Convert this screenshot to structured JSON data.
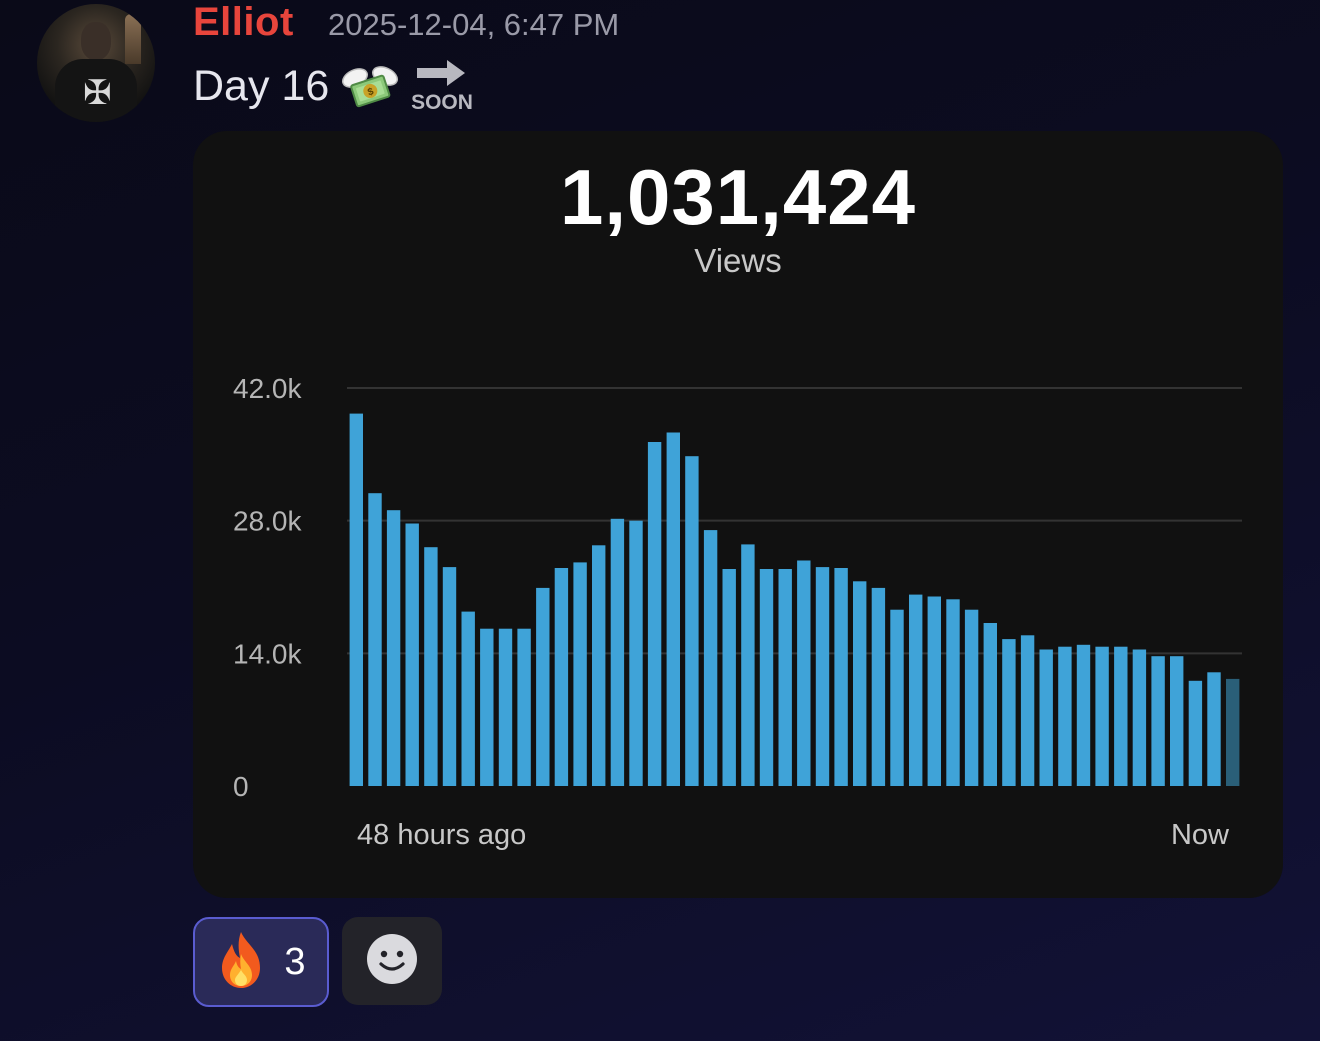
{
  "message": {
    "author": "Elliot",
    "timestamp": "2025-12-04, 6:47 PM",
    "text": "Day 16",
    "emojis": [
      "money-with-wings-icon",
      "soon-arrow-icon"
    ],
    "soon_label": "SOON",
    "author_color": "#e8453c"
  },
  "card": {
    "total_views": "1,031,424",
    "views_label": "Views"
  },
  "chart_data": {
    "type": "bar",
    "ylim": [
      0,
      42000
    ],
    "y_ticks": [
      "0",
      "14.0k",
      "28.0k",
      "42.0k"
    ],
    "y_tick_values": [
      0,
      14000,
      28000,
      42000
    ],
    "x_start_label": "48 hours ago",
    "x_end_label": "Now",
    "grid": true,
    "bar_color": "#3fa3d8",
    "last_bar_color": "#2a5f78",
    "values": [
      39300,
      30900,
      29100,
      27700,
      25200,
      23100,
      18400,
      16600,
      16600,
      16600,
      20900,
      23000,
      23600,
      25400,
      28200,
      28000,
      36300,
      37300,
      34800,
      27000,
      22900,
      25500,
      22900,
      22900,
      23800,
      23100,
      23000,
      21600,
      20900,
      18600,
      20200,
      20000,
      19700,
      18600,
      17200,
      15500,
      15900,
      14400,
      14700,
      14900,
      14700,
      14700,
      14400,
      13700,
      13700,
      11100,
      12000,
      11300
    ]
  },
  "reactions": [
    {
      "emoji": "fire-icon",
      "count": "3"
    }
  ],
  "add_reaction": {
    "icon": "smiley-icon"
  }
}
